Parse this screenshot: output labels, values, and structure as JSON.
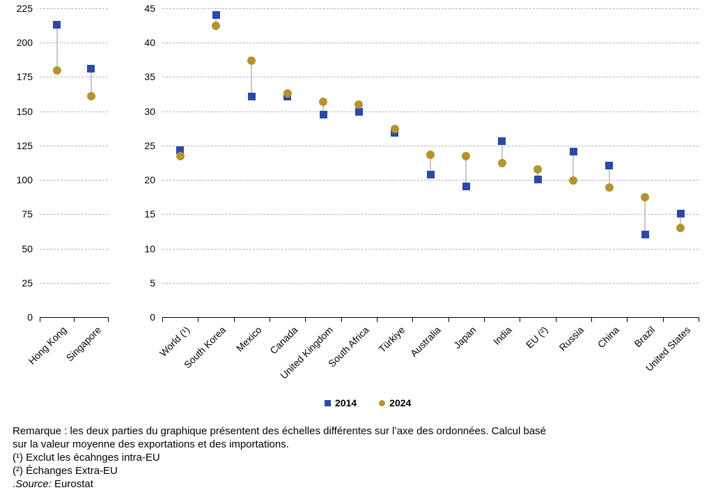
{
  "chart_data": [
    {
      "type": "scatter",
      "panel": "left",
      "title": "",
      "categories": [
        "Hong Kong",
        "Singapore"
      ],
      "series": [
        {
          "name": "2014",
          "marker": "square",
          "color": "#2b49a5",
          "values": [
            213,
            181
          ]
        },
        {
          "name": "2024",
          "marker": "circle",
          "color": "#b5932e",
          "values": [
            180,
            161
          ]
        }
      ],
      "ylim": [
        0,
        225
      ],
      "ytick_step": 25,
      "grid": "dashed-horizontal",
      "legend_position": "bottom"
    },
    {
      "type": "scatter",
      "panel": "right",
      "title": "",
      "categories": [
        "World (¹)",
        "South Korea",
        "Mexico",
        "Canada",
        "United Kingdom",
        "South Africa",
        "Türkiye",
        "Australia",
        "Japan",
        "India",
        "EU (²)",
        "Russia",
        "China",
        "Brazil",
        "United States"
      ],
      "series": [
        {
          "name": "2014",
          "marker": "square",
          "color": "#2b49a5",
          "values": [
            24.3,
            44.0,
            32.1,
            32.2,
            29.5,
            29.9,
            26.9,
            20.8,
            19.0,
            25.6,
            20.1,
            24.1,
            22.1,
            12.0,
            15.1
          ]
        },
        {
          "name": "2024",
          "marker": "circle",
          "color": "#b5932e",
          "values": [
            23.5,
            42.5,
            37.4,
            32.6,
            31.4,
            31.0,
            27.4,
            23.7,
            23.5,
            22.4,
            21.5,
            19.9,
            18.9,
            17.5,
            13.0
          ]
        }
      ],
      "ylim": [
        0,
        45
      ],
      "ytick_step": 5,
      "grid": "dashed-horizontal",
      "legend_position": "bottom"
    }
  ],
  "legend": {
    "items": [
      {
        "label": "2014",
        "marker": "square",
        "color": "#2b49a5"
      },
      {
        "label": "2024",
        "marker": "circle",
        "color": "#b5932e"
      }
    ]
  },
  "notes": {
    "remark_line1": "Remarque : les deux parties du graphique présentent des échelles différentes sur l’axe des ordonnées. Calcul basé",
    "remark_line2": "sur la valeur moyenne des exportations et des importations.",
    "footnote1": "(¹) Exclut les écahnges intra-EU",
    "footnote2": "(²) Échanges Extra-EU",
    "source_prefix": ".",
    "source_label": "Source:",
    "source_value": " Eurostat"
  },
  "colors": {
    "series_2014": "#2b49a5",
    "series_2024": "#b5932e",
    "gridline": "#b3b3b3",
    "connector": "#c7c7c7",
    "axis": "#000000"
  }
}
